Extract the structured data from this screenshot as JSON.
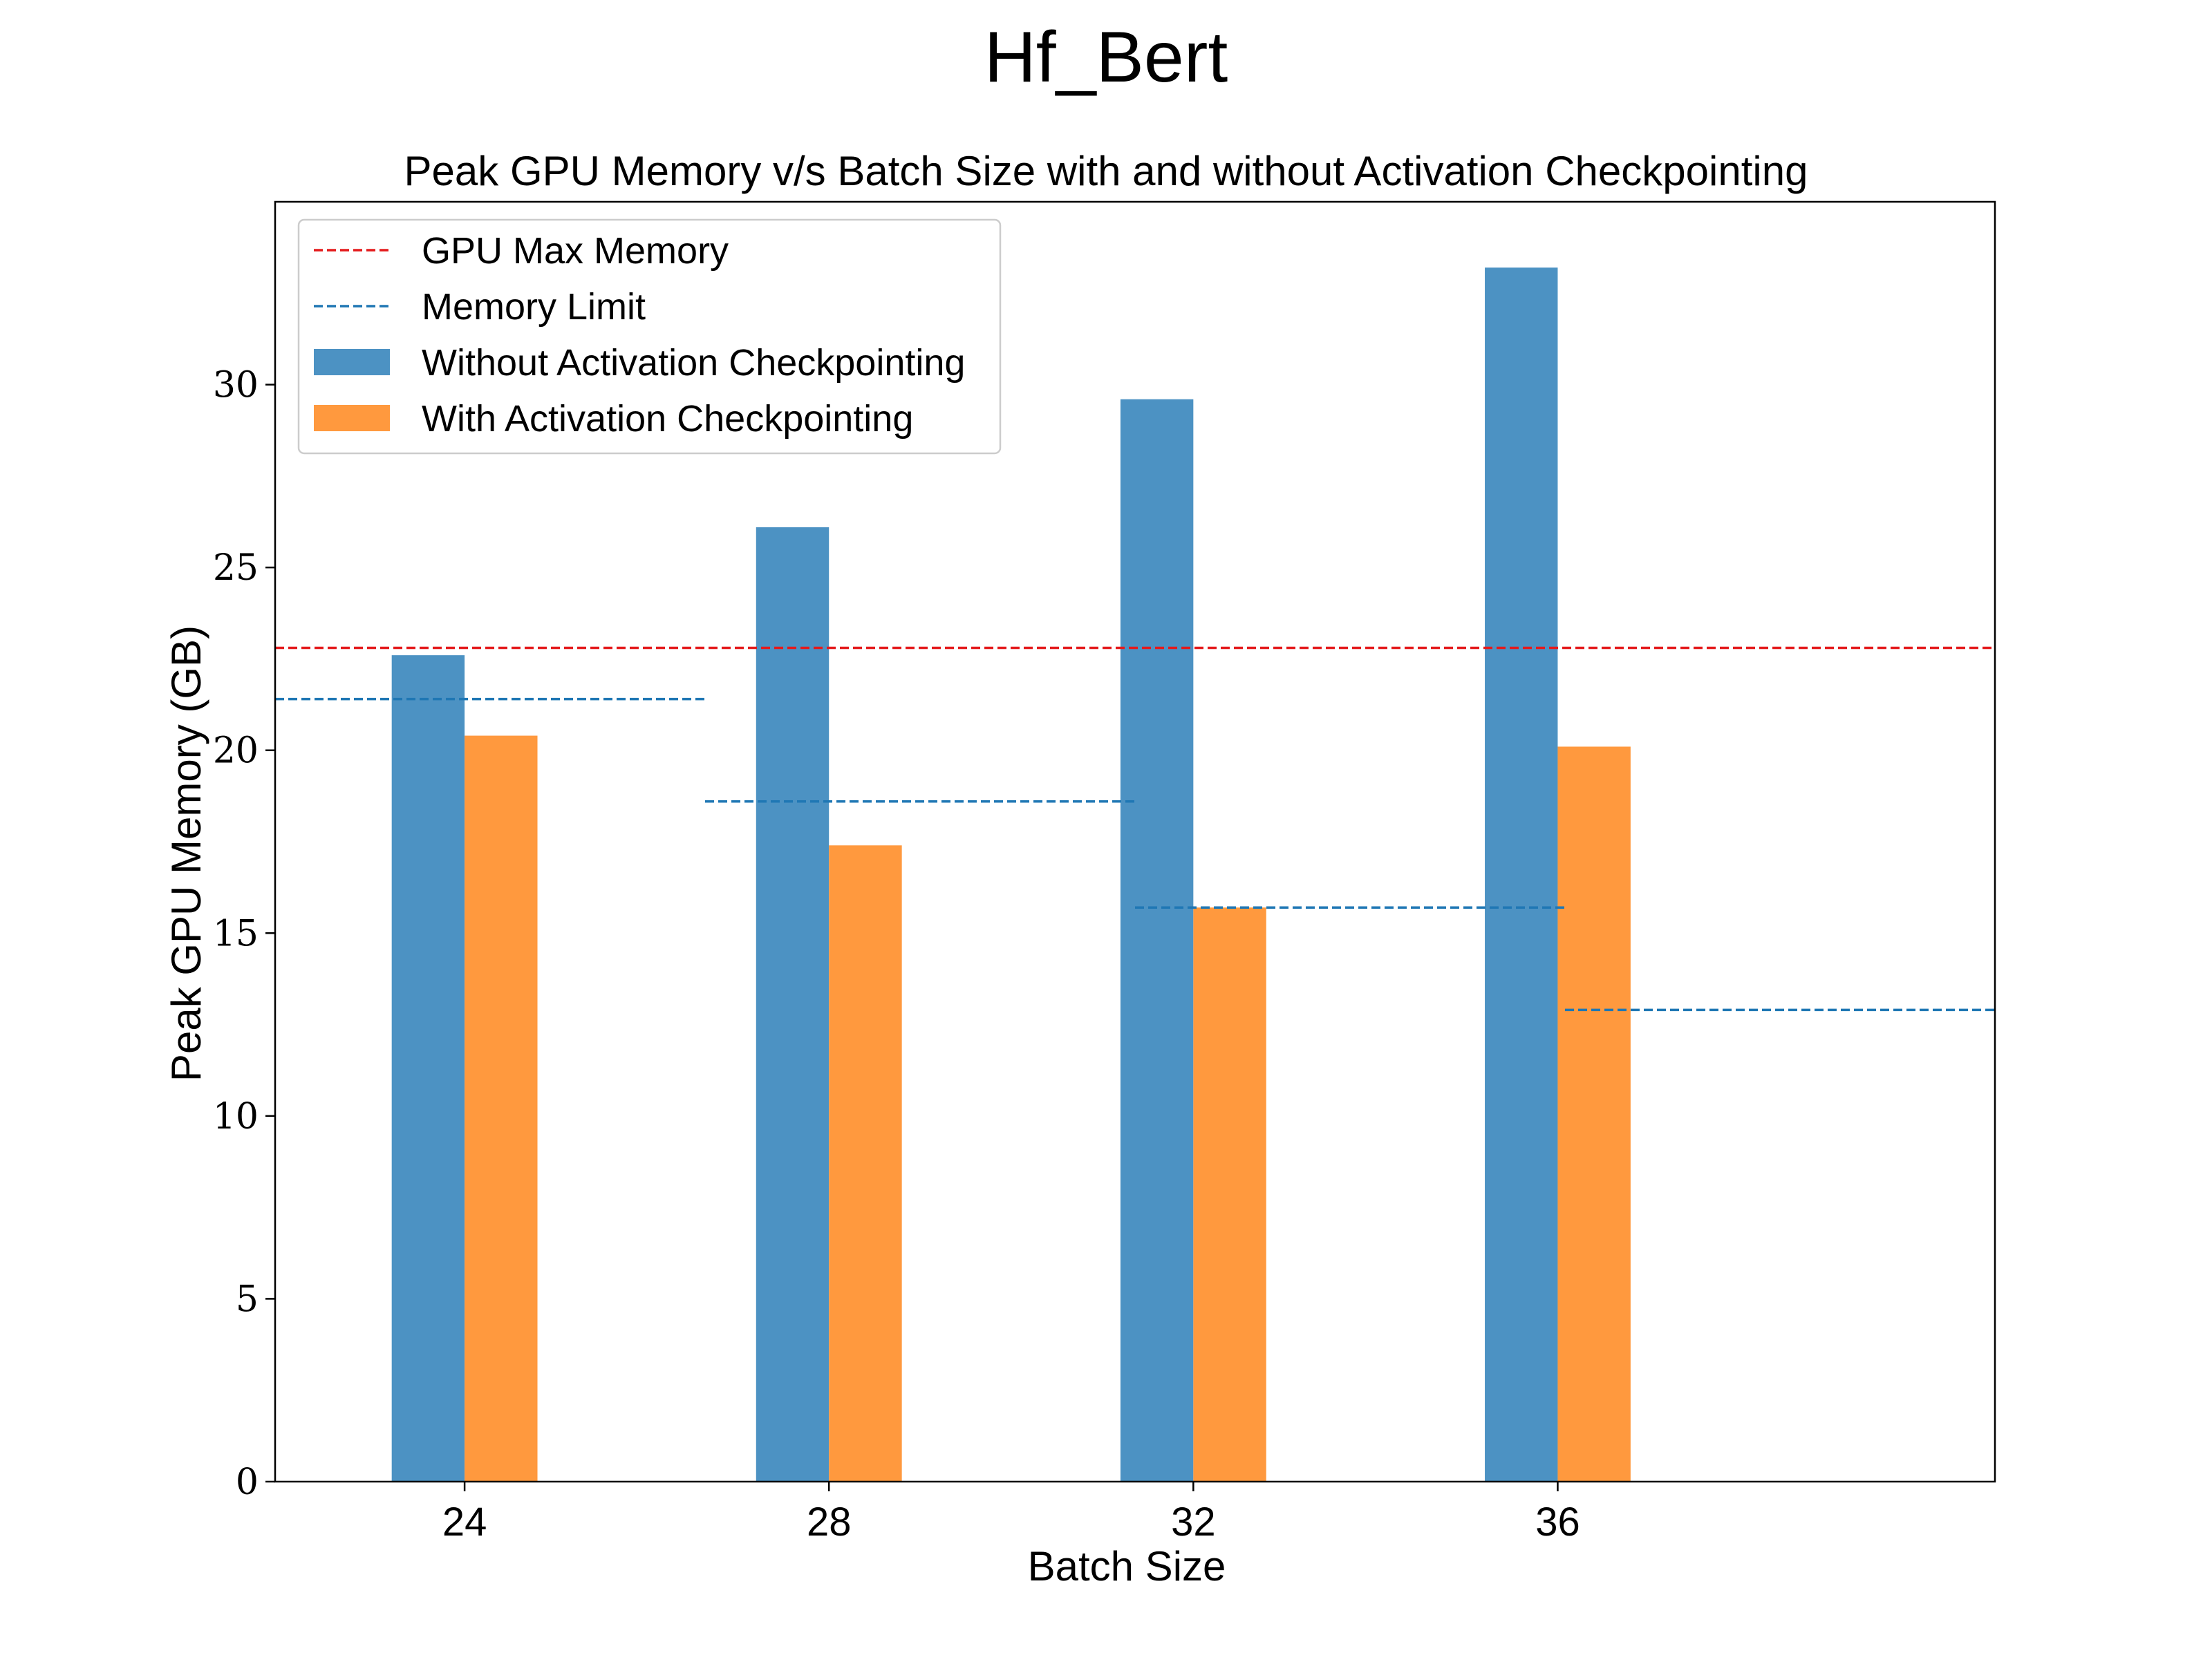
{
  "chart_data": {
    "type": "bar",
    "suptitle": "Hf_Bert",
    "title": "Peak GPU Memory v/s Batch Size with and without Activation Checkpointing",
    "xlabel": "Batch Size",
    "ylabel": "Peak GPU Memory (GB)",
    "categories": [
      "24",
      "28",
      "32",
      "36"
    ],
    "ylim": [
      0,
      35
    ],
    "yticks": [
      0,
      5,
      10,
      15,
      20,
      25,
      30
    ],
    "series": [
      {
        "name": "Without Activation Checkpointing",
        "color": "#4c92c3",
        "values": [
          22.6,
          26.1,
          29.6,
          33.2
        ]
      },
      {
        "name": "With Activation Checkpointing",
        "color": "#ff993e",
        "values": [
          20.4,
          17.4,
          15.7,
          20.1
        ]
      }
    ],
    "reference_lines": [
      {
        "name": "GPU Max Memory",
        "color": "#e41a1c",
        "style": "dashed",
        "value": 22.8,
        "span": "full"
      }
    ],
    "memory_limit": {
      "name": "Memory Limit",
      "color": "#1f77b4",
      "style": "dashed",
      "values": [
        21.4,
        18.6,
        15.7,
        12.9
      ]
    },
    "legend": {
      "position": "top-left",
      "entries": [
        {
          "label": "GPU Max Memory",
          "kind": "line",
          "color": "#e41a1c"
        },
        {
          "label": "Memory Limit",
          "kind": "line",
          "color": "#1f77b4"
        },
        {
          "label": "Without Activation Checkpointing",
          "kind": "patch",
          "color": "#4c92c3"
        },
        {
          "label": "With Activation Checkpointing",
          "kind": "patch",
          "color": "#ff993e"
        }
      ]
    },
    "grid": false
  }
}
